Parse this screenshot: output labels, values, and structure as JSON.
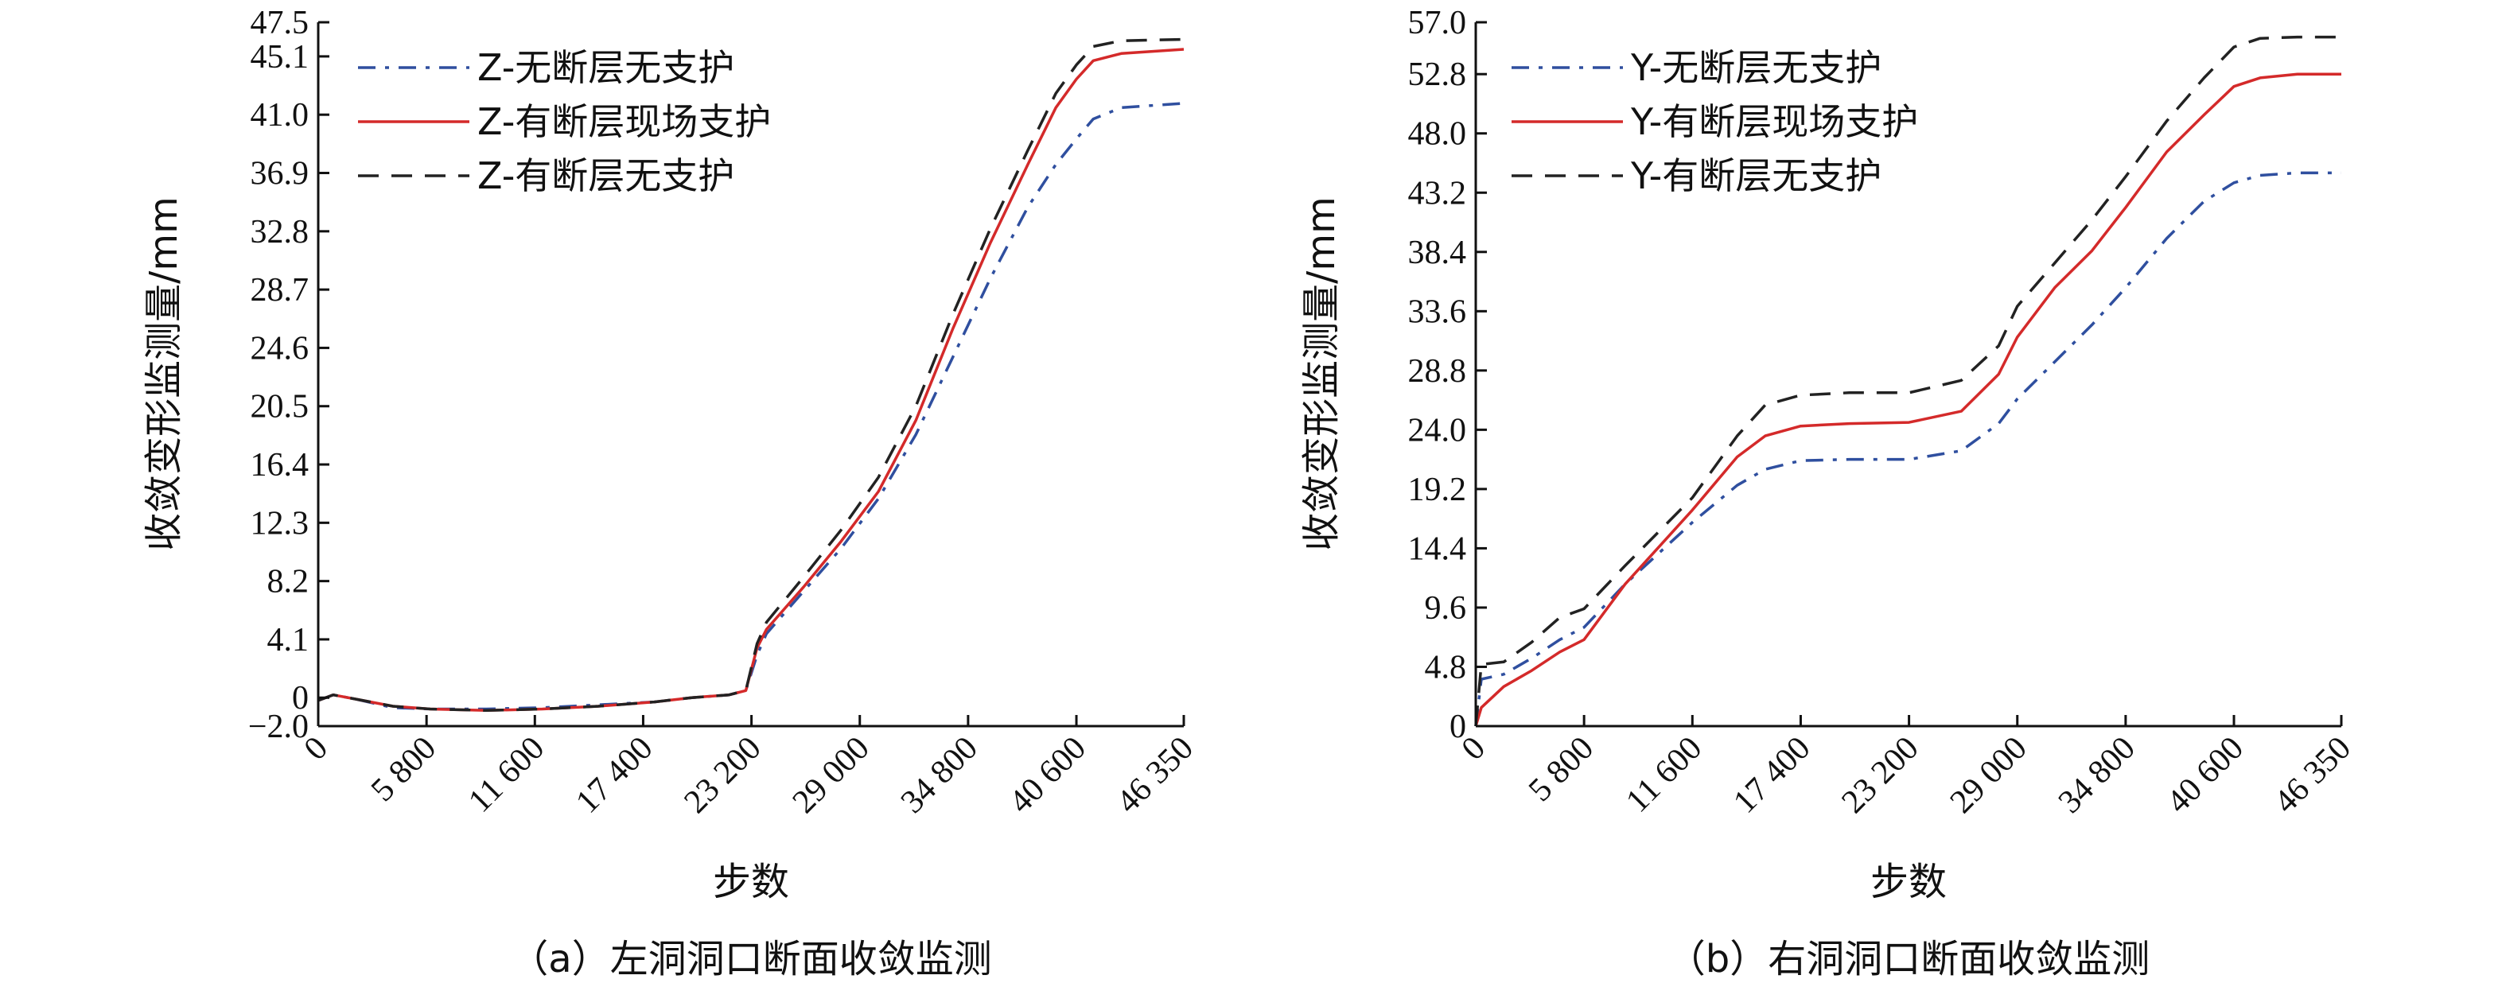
{
  "chart_data": [
    {
      "type": "line",
      "caption": "（a）左洞洞口断面收敛监测",
      "xlabel": "步数",
      "ylabel": "收敛变形监测量/mm",
      "xlim": [
        0,
        46350
      ],
      "ylim": [
        -2.0,
        47.5
      ],
      "x_ticks": [
        "0",
        "5 800",
        "11 600",
        "17 400",
        "23 200",
        "29 000",
        "34 800",
        "40 600",
        "46 350"
      ],
      "x_tick_values": [
        0,
        5800,
        11600,
        17400,
        23200,
        29000,
        34800,
        40600,
        46350
      ],
      "y_ticks": [
        "−2.0",
        "0",
        "4.1",
        "8.2",
        "12.3",
        "16.4",
        "20.5",
        "24.6",
        "28.7",
        "32.8",
        "36.9",
        "41.0",
        "45.1",
        "47.5"
      ],
      "y_tick_values": [
        -2.0,
        0,
        4.1,
        8.2,
        12.3,
        16.4,
        20.5,
        24.6,
        28.7,
        32.8,
        36.9,
        41.0,
        45.1,
        47.5
      ],
      "legend_position": "top-left",
      "series": [
        {
          "name": "Z-无断层无支护",
          "color": "#2f4f9f",
          "dash": "dashdot",
          "x": [
            0,
            800,
            2000,
            4000,
            6000,
            9000,
            12000,
            15000,
            18000,
            20000,
            22000,
            22900,
            23500,
            24000,
            26000,
            28000,
            30000,
            32000,
            34000,
            36000,
            38000,
            39500,
            40600,
            41500,
            43000,
            46350
          ],
          "values": [
            -0.2,
            0.2,
            -0.1,
            -0.7,
            -0.8,
            -0.8,
            -0.7,
            -0.5,
            -0.3,
            0.0,
            0.2,
            0.5,
            3.0,
            4.5,
            7.5,
            10.5,
            14.0,
            18.5,
            24.0,
            29.5,
            34.5,
            37.5,
            39.3,
            40.7,
            41.5,
            41.8
          ]
        },
        {
          "name": "Z-有断层现场支护",
          "color": "#d42a2a",
          "dash": "solid",
          "x": [
            0,
            800,
            2000,
            4000,
            6000,
            9000,
            12000,
            15000,
            18000,
            20000,
            22000,
            22900,
            23500,
            24000,
            26000,
            28000,
            30000,
            32000,
            34000,
            36000,
            38000,
            39500,
            40600,
            41500,
            43000,
            46350
          ],
          "values": [
            -0.2,
            0.2,
            -0.1,
            -0.6,
            -0.8,
            -0.9,
            -0.8,
            -0.6,
            -0.3,
            0.0,
            0.2,
            0.5,
            3.5,
            4.8,
            7.8,
            11.0,
            14.5,
            19.5,
            26.0,
            32.0,
            37.5,
            41.5,
            43.5,
            44.8,
            45.3,
            45.6
          ]
        },
        {
          "name": "Z-有断层无支护",
          "color": "#222222",
          "dash": "dashed",
          "x": [
            0,
            800,
            2000,
            4000,
            6000,
            9000,
            12000,
            15000,
            18000,
            20000,
            22000,
            22900,
            23500,
            24000,
            26000,
            28000,
            30000,
            32000,
            34000,
            36000,
            38000,
            39500,
            40600,
            41500,
            43000,
            46350
          ],
          "values": [
            -0.2,
            0.2,
            -0.1,
            -0.6,
            -0.8,
            -0.9,
            -0.8,
            -0.6,
            -0.3,
            0.0,
            0.2,
            0.5,
            3.8,
            5.3,
            8.5,
            11.8,
            15.5,
            20.5,
            27.0,
            33.0,
            38.5,
            42.5,
            44.5,
            45.8,
            46.2,
            46.3
          ]
        }
      ]
    },
    {
      "type": "line",
      "caption": "（b）右洞洞口断面收敛监测",
      "xlabel": "步数",
      "ylabel": "收敛变形监测量/mm",
      "xlim": [
        0,
        46350
      ],
      "ylim": [
        0,
        57.0
      ],
      "x_ticks": [
        "0",
        "5 800",
        "11 600",
        "17 400",
        "23 200",
        "29 000",
        "34 800",
        "40 600",
        "46 350"
      ],
      "x_tick_values": [
        0,
        5800,
        11600,
        17400,
        23200,
        29000,
        34800,
        40600,
        46350
      ],
      "y_ticks": [
        "0",
        "4.8",
        "9.6",
        "14.4",
        "19.2",
        "24.0",
        "28.8",
        "33.6",
        "38.4",
        "43.2",
        "48.0",
        "52.8",
        "57.0"
      ],
      "y_tick_values": [
        0,
        4.8,
        9.6,
        14.4,
        19.2,
        24.0,
        28.8,
        33.6,
        38.4,
        43.2,
        48.0,
        52.8,
        57.0
      ],
      "legend_position": "top-left",
      "series": [
        {
          "name": "Y-无断层无支护",
          "color": "#2f4f9f",
          "dash": "dashdot",
          "x": [
            0,
            300,
            1500,
            3000,
            4500,
            5800,
            8000,
            11600,
            14000,
            15500,
            17400,
            20000,
            23200,
            26000,
            28000,
            29000,
            31000,
            33000,
            34800,
            37000,
            39000,
            40600,
            42000,
            44000,
            46350
          ],
          "values": [
            0.0,
            3.8,
            4.2,
            5.5,
            7.0,
            8.0,
            11.5,
            16.5,
            19.5,
            20.8,
            21.5,
            21.6,
            21.6,
            22.3,
            24.5,
            26.5,
            29.5,
            32.5,
            35.5,
            39.5,
            42.5,
            44.0,
            44.6,
            44.8,
            44.8
          ]
        },
        {
          "name": "Y-有断层现场支护",
          "color": "#d42a2a",
          "dash": "solid",
          "x": [
            0,
            300,
            1500,
            3000,
            4500,
            5800,
            8000,
            11600,
            14000,
            15500,
            17400,
            20000,
            23200,
            26000,
            28000,
            29000,
            31000,
            33000,
            34800,
            37000,
            39000,
            40600,
            42000,
            44000,
            46350
          ],
          "values": [
            0.0,
            1.5,
            3.2,
            4.5,
            6.0,
            7.0,
            11.5,
            17.5,
            21.8,
            23.5,
            24.3,
            24.5,
            24.6,
            25.5,
            28.5,
            31.5,
            35.5,
            38.5,
            42.0,
            46.5,
            49.5,
            51.8,
            52.5,
            52.8,
            52.8
          ]
        },
        {
          "name": "Y-有断层无支护",
          "color": "#222222",
          "dash": "dashed",
          "x": [
            0,
            300,
            1500,
            3000,
            4500,
            5800,
            8000,
            11600,
            14000,
            15500,
            17400,
            20000,
            23200,
            26000,
            28000,
            29000,
            31000,
            33000,
            34800,
            37000,
            39000,
            40600,
            42000,
            44000,
            46350
          ],
          "values": [
            0.0,
            5.0,
            5.2,
            6.8,
            8.8,
            9.5,
            13.0,
            18.5,
            23.5,
            26.0,
            26.8,
            27.0,
            27.0,
            28.0,
            30.8,
            34.0,
            37.5,
            41.0,
            44.5,
            49.0,
            52.5,
            55.0,
            55.7,
            55.8,
            55.8
          ]
        }
      ]
    }
  ]
}
